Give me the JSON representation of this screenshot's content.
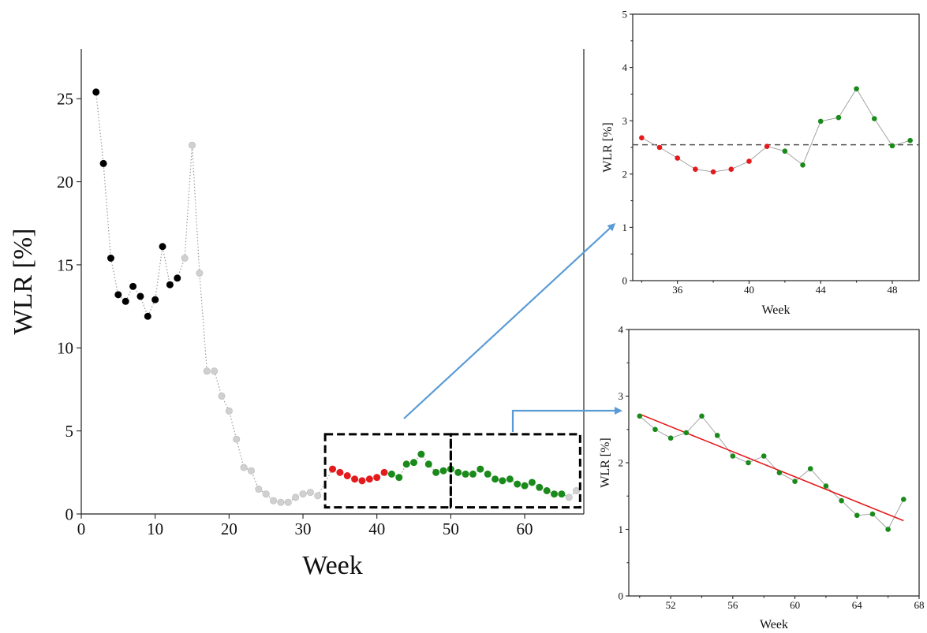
{
  "colors": {
    "black": "#000000",
    "gray": "#d0d0d0",
    "red": "#e41a1c",
    "green": "#1a8a1a",
    "arrow": "#5b9bd5",
    "trend": "#e41a1c",
    "threshold": "#555555"
  },
  "chart_data": [
    {
      "id": "main",
      "type": "scatter",
      "xlabel": "Week",
      "ylabel": "WLR [%]",
      "xlim": [
        0,
        68
      ],
      "ylim": [
        0,
        28
      ],
      "xticks": [
        0,
        10,
        20,
        30,
        40,
        50,
        60
      ],
      "yticks": [
        0,
        5,
        10,
        15,
        20,
        25
      ],
      "connector": "dotted",
      "points": [
        {
          "x": 2,
          "y": 25.4,
          "c": "black"
        },
        {
          "x": 3,
          "y": 21.1,
          "c": "black"
        },
        {
          "x": 4,
          "y": 15.4,
          "c": "black"
        },
        {
          "x": 5,
          "y": 13.2,
          "c": "black"
        },
        {
          "x": 6,
          "y": 12.8,
          "c": "black"
        },
        {
          "x": 7,
          "y": 13.7,
          "c": "black"
        },
        {
          "x": 8,
          "y": 13.1,
          "c": "black"
        },
        {
          "x": 9,
          "y": 11.9,
          "c": "black"
        },
        {
          "x": 10,
          "y": 12.9,
          "c": "black"
        },
        {
          "x": 11,
          "y": 16.1,
          "c": "black"
        },
        {
          "x": 12,
          "y": 13.8,
          "c": "black"
        },
        {
          "x": 13,
          "y": 14.2,
          "c": "black"
        },
        {
          "x": 14,
          "y": 15.4,
          "c": "gray"
        },
        {
          "x": 15,
          "y": 22.2,
          "c": "gray"
        },
        {
          "x": 16,
          "y": 14.5,
          "c": "gray"
        },
        {
          "x": 17,
          "y": 8.6,
          "c": "gray"
        },
        {
          "x": 18,
          "y": 8.6,
          "c": "gray"
        },
        {
          "x": 19,
          "y": 7.1,
          "c": "gray"
        },
        {
          "x": 20,
          "y": 6.2,
          "c": "gray"
        },
        {
          "x": 21,
          "y": 4.5,
          "c": "gray"
        },
        {
          "x": 22,
          "y": 2.8,
          "c": "gray"
        },
        {
          "x": 23,
          "y": 2.6,
          "c": "gray"
        },
        {
          "x": 24,
          "y": 1.5,
          "c": "gray"
        },
        {
          "x": 25,
          "y": 1.2,
          "c": "gray"
        },
        {
          "x": 26,
          "y": 0.8,
          "c": "gray"
        },
        {
          "x": 27,
          "y": 0.7,
          "c": "gray"
        },
        {
          "x": 28,
          "y": 0.7,
          "c": "gray"
        },
        {
          "x": 29,
          "y": 1.0,
          "c": "gray"
        },
        {
          "x": 30,
          "y": 1.2,
          "c": "gray"
        },
        {
          "x": 31,
          "y": 1.3,
          "c": "gray"
        },
        {
          "x": 32,
          "y": 1.1,
          "c": "gray"
        },
        {
          "x": 34,
          "y": 2.7,
          "c": "red"
        },
        {
          "x": 35,
          "y": 2.5,
          "c": "red"
        },
        {
          "x": 36,
          "y": 2.3,
          "c": "red"
        },
        {
          "x": 37,
          "y": 2.1,
          "c": "red"
        },
        {
          "x": 38,
          "y": 2.0,
          "c": "red"
        },
        {
          "x": 39,
          "y": 2.1,
          "c": "red"
        },
        {
          "x": 40,
          "y": 2.2,
          "c": "red"
        },
        {
          "x": 41,
          "y": 2.5,
          "c": "red"
        },
        {
          "x": 42,
          "y": 2.4,
          "c": "green"
        },
        {
          "x": 43,
          "y": 2.2,
          "c": "green"
        },
        {
          "x": 44,
          "y": 3.0,
          "c": "green"
        },
        {
          "x": 45,
          "y": 3.1,
          "c": "green"
        },
        {
          "x": 46,
          "y": 3.6,
          "c": "green"
        },
        {
          "x": 47,
          "y": 3.0,
          "c": "green"
        },
        {
          "x": 48,
          "y": 2.5,
          "c": "green"
        },
        {
          "x": 49,
          "y": 2.6,
          "c": "green"
        },
        {
          "x": 50,
          "y": 2.7,
          "c": "green"
        },
        {
          "x": 51,
          "y": 2.5,
          "c": "green"
        },
        {
          "x": 52,
          "y": 2.4,
          "c": "green"
        },
        {
          "x": 53,
          "y": 2.4,
          "c": "green"
        },
        {
          "x": 54,
          "y": 2.7,
          "c": "green"
        },
        {
          "x": 55,
          "y": 2.4,
          "c": "green"
        },
        {
          "x": 56,
          "y": 2.1,
          "c": "green"
        },
        {
          "x": 57,
          "y": 2.0,
          "c": "green"
        },
        {
          "x": 58,
          "y": 2.1,
          "c": "green"
        },
        {
          "x": 59,
          "y": 1.8,
          "c": "green"
        },
        {
          "x": 60,
          "y": 1.7,
          "c": "green"
        },
        {
          "x": 61,
          "y": 1.9,
          "c": "green"
        },
        {
          "x": 62,
          "y": 1.6,
          "c": "green"
        },
        {
          "x": 63,
          "y": 1.4,
          "c": "green"
        },
        {
          "x": 64,
          "y": 1.2,
          "c": "green"
        },
        {
          "x": 65,
          "y": 1.2,
          "c": "green"
        },
        {
          "x": 66,
          "y": 1.0,
          "c": "gray"
        },
        {
          "x": 67,
          "y": 1.4,
          "c": "gray"
        }
      ],
      "highlight_boxes": [
        {
          "x0": 33,
          "x1": 50,
          "y0": 0.4,
          "y1": 4.8
        },
        {
          "x0": 50,
          "x1": 67.5,
          "y0": 0.4,
          "y1": 4.8
        }
      ]
    },
    {
      "id": "inset-top",
      "type": "scatter",
      "xlabel": "Week",
      "ylabel": "WLR [%]",
      "xlim": [
        33.5,
        49.5
      ],
      "ylim": [
        0,
        5
      ],
      "xticks": [
        36,
        40,
        44,
        48
      ],
      "yticks": [
        0,
        1,
        2,
        3,
        4,
        5
      ],
      "connector": "solid",
      "threshold": 2.55,
      "points": [
        {
          "x": 34,
          "y": 2.68,
          "c": "red"
        },
        {
          "x": 35,
          "y": 2.5,
          "c": "red"
        },
        {
          "x": 36,
          "y": 2.3,
          "c": "red"
        },
        {
          "x": 37,
          "y": 2.09,
          "c": "red"
        },
        {
          "x": 38,
          "y": 2.04,
          "c": "red"
        },
        {
          "x": 39,
          "y": 2.09,
          "c": "red"
        },
        {
          "x": 40,
          "y": 2.24,
          "c": "red"
        },
        {
          "x": 41,
          "y": 2.52,
          "c": "red"
        },
        {
          "x": 42,
          "y": 2.43,
          "c": "green"
        },
        {
          "x": 43,
          "y": 2.17,
          "c": "green"
        },
        {
          "x": 44,
          "y": 2.99,
          "c": "green"
        },
        {
          "x": 45,
          "y": 3.06,
          "c": "green"
        },
        {
          "x": 46,
          "y": 3.6,
          "c": "green"
        },
        {
          "x": 47,
          "y": 3.04,
          "c": "green"
        },
        {
          "x": 48,
          "y": 2.53,
          "c": "green"
        },
        {
          "x": 49,
          "y": 2.63,
          "c": "green"
        }
      ]
    },
    {
      "id": "inset-bottom",
      "type": "scatter",
      "xlabel": "Week",
      "ylabel": "WLR [%]",
      "xlim": [
        49.3,
        68
      ],
      "ylim": [
        0,
        4
      ],
      "xticks": [
        52,
        56,
        60,
        64,
        68
      ],
      "yticks": [
        0,
        1,
        2,
        3,
        4
      ],
      "connector": "solid",
      "trend": {
        "x0": 50,
        "y0": 2.73,
        "x1": 67,
        "y1": 1.13
      },
      "points": [
        {
          "x": 50,
          "y": 2.7,
          "c": "green"
        },
        {
          "x": 51,
          "y": 2.5,
          "c": "green"
        },
        {
          "x": 52,
          "y": 2.37,
          "c": "green"
        },
        {
          "x": 53,
          "y": 2.45,
          "c": "green"
        },
        {
          "x": 54,
          "y": 2.7,
          "c": "green"
        },
        {
          "x": 55,
          "y": 2.41,
          "c": "green"
        },
        {
          "x": 56,
          "y": 2.1,
          "c": "green"
        },
        {
          "x": 57,
          "y": 2.0,
          "c": "green"
        },
        {
          "x": 58,
          "y": 2.1,
          "c": "green"
        },
        {
          "x": 59,
          "y": 1.85,
          "c": "green"
        },
        {
          "x": 60,
          "y": 1.72,
          "c": "green"
        },
        {
          "x": 61,
          "y": 1.91,
          "c": "green"
        },
        {
          "x": 62,
          "y": 1.65,
          "c": "green"
        },
        {
          "x": 63,
          "y": 1.43,
          "c": "green"
        },
        {
          "x": 64,
          "y": 1.21,
          "c": "green"
        },
        {
          "x": 65,
          "y": 1.23,
          "c": "green"
        },
        {
          "x": 66,
          "y": 1.0,
          "c": "green"
        },
        {
          "x": 67,
          "y": 1.45,
          "c": "green"
        }
      ]
    }
  ]
}
